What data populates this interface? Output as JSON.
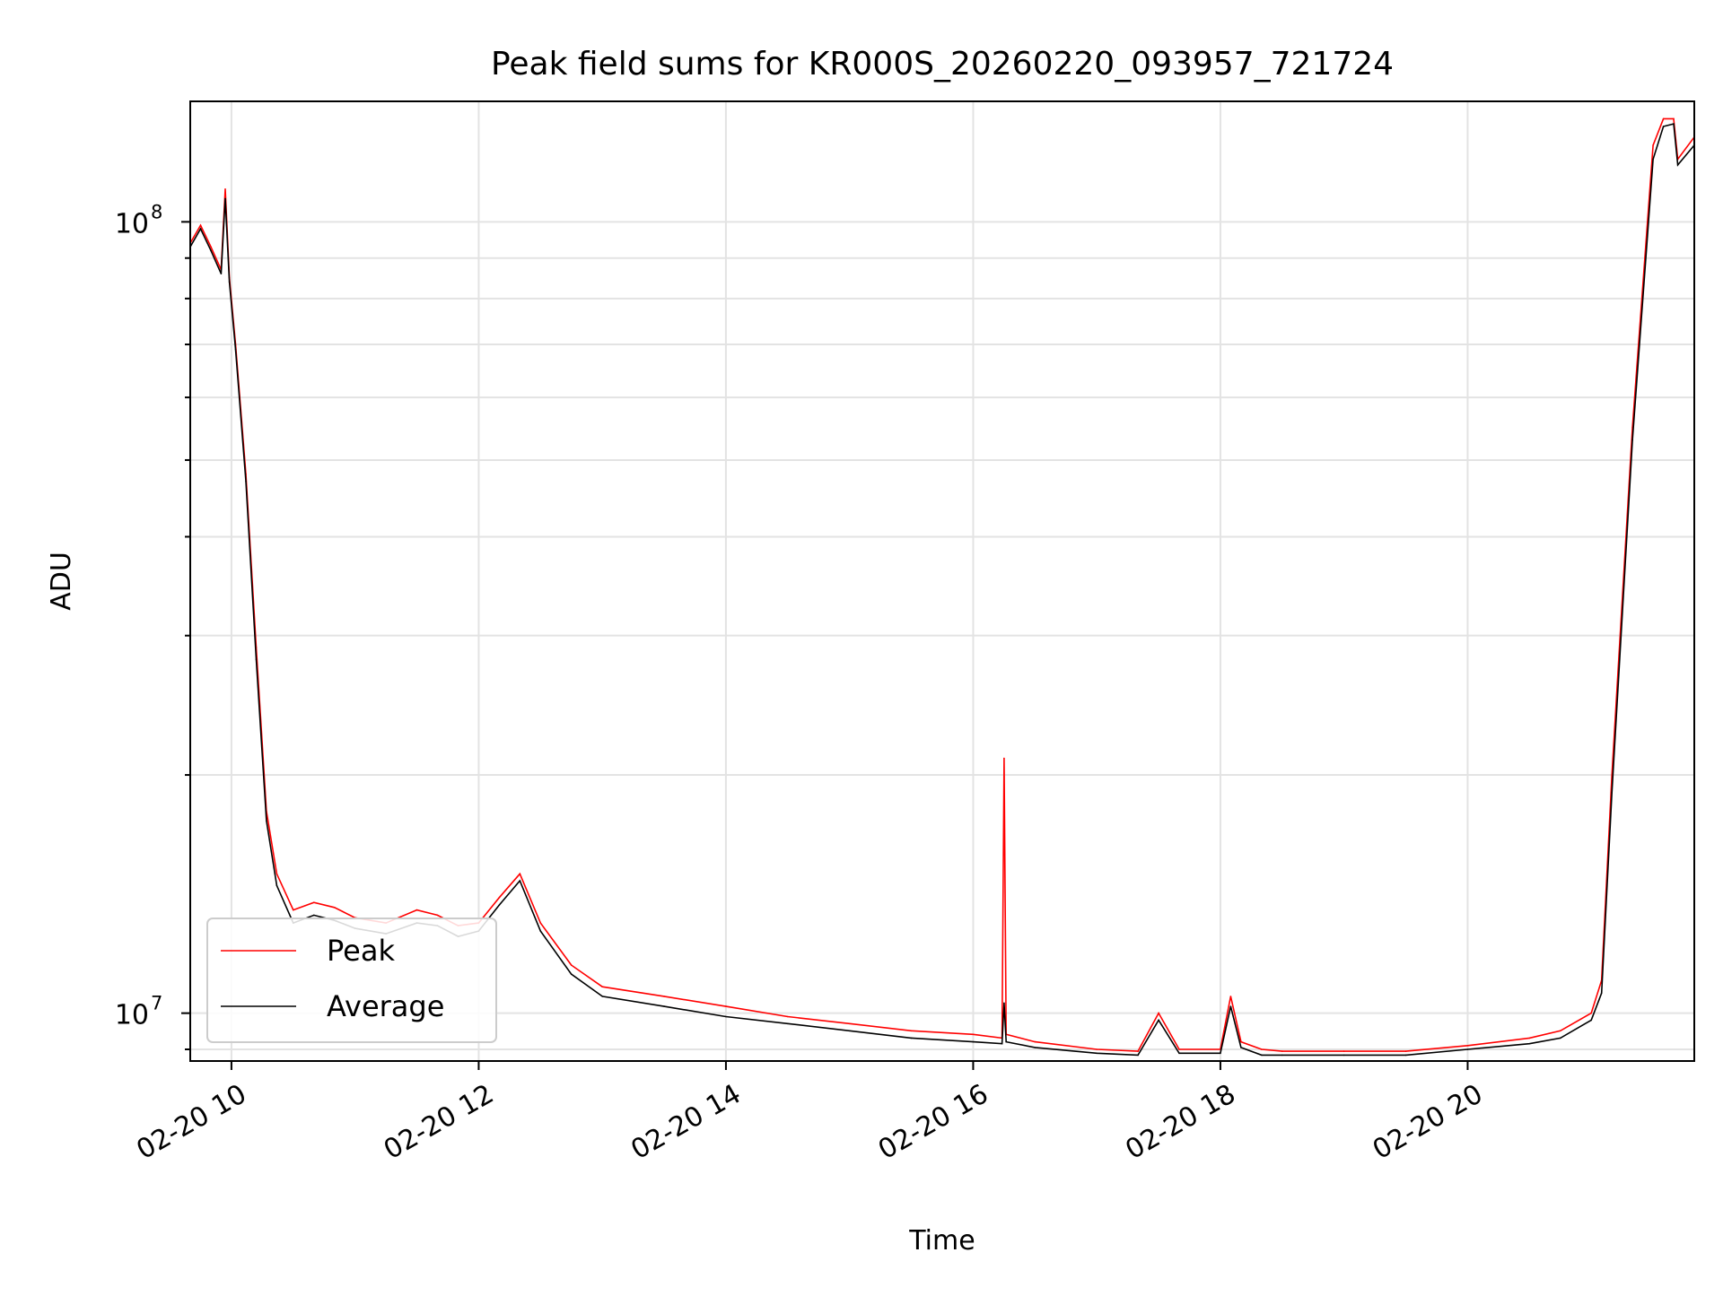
{
  "chart_data": {
    "type": "line",
    "title": "Peak field sums for KR000S_20260220_093957_721724",
    "xlabel": "Time",
    "ylabel": "ADU",
    "x_scale": "time",
    "y_scale": "log",
    "xlim": [
      "02-20 09:40",
      "02-20 21:50"
    ],
    "ylim": [
      8700000,
      142000000
    ],
    "x_ticks": [
      "02-20 10",
      "02-20 12",
      "02-20 14",
      "02-20 16",
      "02-20 18",
      "02-20 20"
    ],
    "y_ticks": [
      {
        "label": "10",
        "exp": "7",
        "value": 10000000
      },
      {
        "label": "10",
        "exp": "8",
        "value": 100000000
      }
    ],
    "grid": true,
    "legend_position": "lower-left",
    "series": [
      {
        "name": "Peak",
        "color": "#ff0000",
        "x": [
          "02-20 09:40",
          "02-20 09:45",
          "02-20 09:50",
          "02-20 09:55",
          "02-20 09:57",
          "02-20 09:59",
          "02-20 10:02",
          "02-20 10:07",
          "02-20 10:12",
          "02-20 10:17",
          "02-20 10:22",
          "02-20 10:30",
          "02-20 10:40",
          "02-20 10:50",
          "02-20 11:00",
          "02-20 11:15",
          "02-20 11:30",
          "02-20 11:40",
          "02-20 11:50",
          "02-20 12:00",
          "02-20 12:10",
          "02-20 12:20",
          "02-20 12:30",
          "02-20 12:45",
          "02-20 13:00",
          "02-20 13:30",
          "02-20 14:00",
          "02-20 14:30",
          "02-20 15:00",
          "02-20 15:30",
          "02-20 16:00",
          "02-20 16:14",
          "02-20 16:15",
          "02-20 16:16",
          "02-20 16:30",
          "02-20 17:00",
          "02-20 17:20",
          "02-20 17:30",
          "02-20 17:40",
          "02-20 18:00",
          "02-20 18:05",
          "02-20 18:10",
          "02-20 18:20",
          "02-20 18:30",
          "02-20 19:00",
          "02-20 19:30",
          "02-20 20:00",
          "02-20 20:30",
          "02-20 20:45",
          "02-20 21:00",
          "02-20 21:05",
          "02-20 21:10",
          "02-20 21:20",
          "02-20 21:30",
          "02-20 21:35",
          "02-20 21:40",
          "02-20 21:42",
          "02-20 21:50"
        ],
        "y": [
          94000000,
          99000000,
          93000000,
          87000000,
          110000000,
          85000000,
          70000000,
          48000000,
          29000000,
          18000000,
          15000000,
          13500000,
          13800000,
          13600000,
          13200000,
          13000000,
          13500000,
          13300000,
          12900000,
          13000000,
          14000000,
          15000000,
          13000000,
          11500000,
          10800000,
          10500000,
          10200000,
          9900000,
          9700000,
          9500000,
          9400000,
          9300000,
          21000000,
          9400000,
          9200000,
          9000000,
          8950000,
          10000000,
          9000000,
          9000000,
          10500000,
          9200000,
          9000000,
          8950000,
          8950000,
          8950000,
          9100000,
          9300000,
          9500000,
          10000000,
          11000000,
          20000000,
          55000000,
          125000000,
          135000000,
          135000000,
          120000000,
          128000000
        ]
      },
      {
        "name": "Average",
        "color": "#000000",
        "x": [
          "02-20 09:40",
          "02-20 09:45",
          "02-20 09:50",
          "02-20 09:55",
          "02-20 09:57",
          "02-20 09:59",
          "02-20 10:02",
          "02-20 10:07",
          "02-20 10:12",
          "02-20 10:17",
          "02-20 10:22",
          "02-20 10:30",
          "02-20 10:40",
          "02-20 10:50",
          "02-20 11:00",
          "02-20 11:15",
          "02-20 11:30",
          "02-20 11:40",
          "02-20 11:50",
          "02-20 12:00",
          "02-20 12:10",
          "02-20 12:20",
          "02-20 12:30",
          "02-20 12:45",
          "02-20 13:00",
          "02-20 13:30",
          "02-20 14:00",
          "02-20 14:30",
          "02-20 15:00",
          "02-20 15:30",
          "02-20 16:00",
          "02-20 16:14",
          "02-20 16:15",
          "02-20 16:16",
          "02-20 16:30",
          "02-20 17:00",
          "02-20 17:20",
          "02-20 17:30",
          "02-20 17:40",
          "02-20 18:00",
          "02-20 18:05",
          "02-20 18:10",
          "02-20 18:20",
          "02-20 18:30",
          "02-20 19:00",
          "02-20 19:30",
          "02-20 20:00",
          "02-20 20:30",
          "02-20 20:45",
          "02-20 21:00",
          "02-20 21:05",
          "02-20 21:10",
          "02-20 21:20",
          "02-20 21:30",
          "02-20 21:35",
          "02-20 21:40",
          "02-20 21:42",
          "02-20 21:50"
        ],
        "y": [
          93000000,
          98000000,
          92000000,
          86000000,
          107000000,
          84000000,
          69000000,
          47000000,
          28000000,
          17500000,
          14500000,
          13000000,
          13300000,
          13100000,
          12800000,
          12600000,
          13000000,
          12900000,
          12500000,
          12700000,
          13700000,
          14700000,
          12700000,
          11200000,
          10500000,
          10200000,
          9900000,
          9700000,
          9500000,
          9300000,
          9200000,
          9150000,
          10300000,
          9200000,
          9050000,
          8900000,
          8850000,
          9800000,
          8900000,
          8900000,
          10200000,
          9050000,
          8850000,
          8850000,
          8850000,
          8850000,
          9000000,
          9150000,
          9300000,
          9800000,
          10600000,
          19000000,
          53000000,
          120000000,
          132000000,
          133000000,
          118000000,
          125000000
        ]
      }
    ]
  }
}
